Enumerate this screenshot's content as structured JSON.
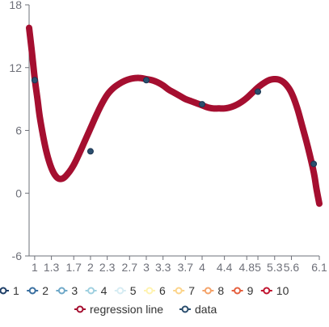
{
  "chart_data": {
    "type": "scatter",
    "title": "",
    "xlabel": "",
    "ylabel": "",
    "xlim": [
      0.9,
      6.1
    ],
    "ylim": [
      -6,
      18
    ],
    "x_ticks": [
      "1",
      "1.3",
      "1.7",
      "2",
      "2.3",
      "2.7",
      "3",
      "3.3",
      "3.7",
      "4",
      "4.4",
      "4.8",
      "5",
      "5.3",
      "5.6",
      "6.1"
    ],
    "y_ticks": [
      "-6",
      "0",
      "6",
      "12",
      "18"
    ],
    "grid": false,
    "legend_position": "bottom",
    "legend": {
      "row1": [
        "1",
        "2",
        "3",
        "4",
        "5",
        "6",
        "7",
        "8",
        "9",
        "10"
      ],
      "row2": [
        "regression line",
        "data"
      ]
    },
    "legend_colors": {
      "1": "#1f3f68",
      "2": "#3a6fa0",
      "3": "#6fa8c8",
      "4": "#9fd0e0",
      "5": "#d6ecf3",
      "6": "#fff3b0",
      "7": "#fcd48a",
      "8": "#f4a36a",
      "9": "#e5603f",
      "10": "#c0142f",
      "regression line": "#a50f30",
      "data": "#2b4e6e"
    },
    "series": [
      {
        "name": "regression line",
        "color": "#a50f30",
        "x": [
          0.9,
          0.95,
          1.0,
          1.05,
          1.1,
          1.2,
          1.3,
          1.4,
          1.5,
          1.6,
          1.7,
          1.8,
          1.9,
          2.0,
          2.1,
          2.2,
          2.3,
          2.4,
          2.5,
          2.6,
          2.7,
          2.8,
          2.9,
          3.0,
          3.1,
          3.2,
          3.3,
          3.4,
          3.5,
          3.6,
          3.7,
          3.8,
          3.9,
          4.0,
          4.1,
          4.2,
          4.3,
          4.4,
          4.5,
          4.6,
          4.7,
          4.8,
          4.9,
          5.0,
          5.1,
          5.2,
          5.3,
          5.4,
          5.5,
          5.6,
          5.7,
          5.8,
          5.9,
          6.0,
          6.05,
          6.1
        ],
        "y": [
          15.8,
          13.5,
          11.0,
          9.0,
          7.0,
          4.2,
          2.4,
          1.5,
          1.4,
          1.9,
          2.7,
          3.8,
          5.0,
          6.2,
          7.4,
          8.5,
          9.4,
          10.0,
          10.4,
          10.7,
          10.9,
          11.0,
          11.0,
          10.9,
          10.8,
          10.6,
          10.3,
          9.9,
          9.6,
          9.3,
          9.0,
          8.8,
          8.6,
          8.4,
          8.2,
          8.1,
          8.1,
          8.1,
          8.2,
          8.4,
          8.7,
          9.1,
          9.6,
          10.1,
          10.5,
          10.8,
          10.9,
          10.8,
          10.4,
          9.6,
          8.2,
          6.3,
          4.3,
          2.0,
          0.4,
          -1.0
        ]
      },
      {
        "name": "data",
        "color": "#2b4e6e",
        "x": [
          1.0,
          2.0,
          3.0,
          4.0,
          5.0,
          6.0
        ],
        "y": [
          10.8,
          4.0,
          10.8,
          8.5,
          9.7,
          2.8
        ]
      }
    ]
  }
}
